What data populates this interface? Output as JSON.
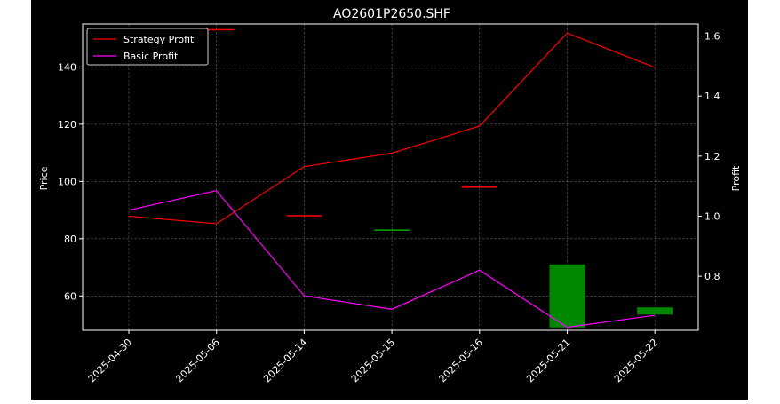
{
  "chart_data": {
    "type": "candlestick+line",
    "title": "AO2601P2650.SHF",
    "categories": [
      "2025-04-30",
      "2025-05-06",
      "2025-05-14",
      "2025-05-15",
      "2025-05-16",
      "2025-05-21",
      "2025-05-22"
    ],
    "ylabel": "Price",
    "ylabel_right": "Profit",
    "ylim": [
      48,
      155
    ],
    "ylim_right": [
      0.62,
      1.64
    ],
    "yticks": [
      60,
      80,
      100,
      120,
      140
    ],
    "yticks_right": [
      0.8,
      1.0,
      1.2,
      1.4,
      1.6
    ],
    "grid": true,
    "legend": "top-left",
    "candles": [
      {
        "open": 141,
        "close": 143,
        "color": "#cc0000"
      },
      {
        "open": 153,
        "close": 153,
        "color": "#ff0000"
      },
      {
        "open": 88,
        "close": 88,
        "color": "#ff0000"
      },
      {
        "open": 83,
        "close": 83,
        "color": "#00aa00"
      },
      {
        "open": 98,
        "close": 98,
        "color": "#ff0000"
      },
      {
        "open": 49,
        "close": 71,
        "color": "#008800"
      },
      {
        "open": 53.5,
        "close": 56,
        "color": "#008800"
      }
    ],
    "series": [
      {
        "name": "Strategy Profit",
        "axis": "right",
        "color": "#ff0000",
        "values": [
          1.0,
          0.975,
          1.165,
          1.21,
          1.3,
          1.61,
          1.495
        ]
      },
      {
        "name": "Basic Profit",
        "axis": "right",
        "color": "#ff00ff",
        "values": [
          1.02,
          1.085,
          0.735,
          0.69,
          0.82,
          0.63,
          0.67
        ]
      }
    ]
  }
}
